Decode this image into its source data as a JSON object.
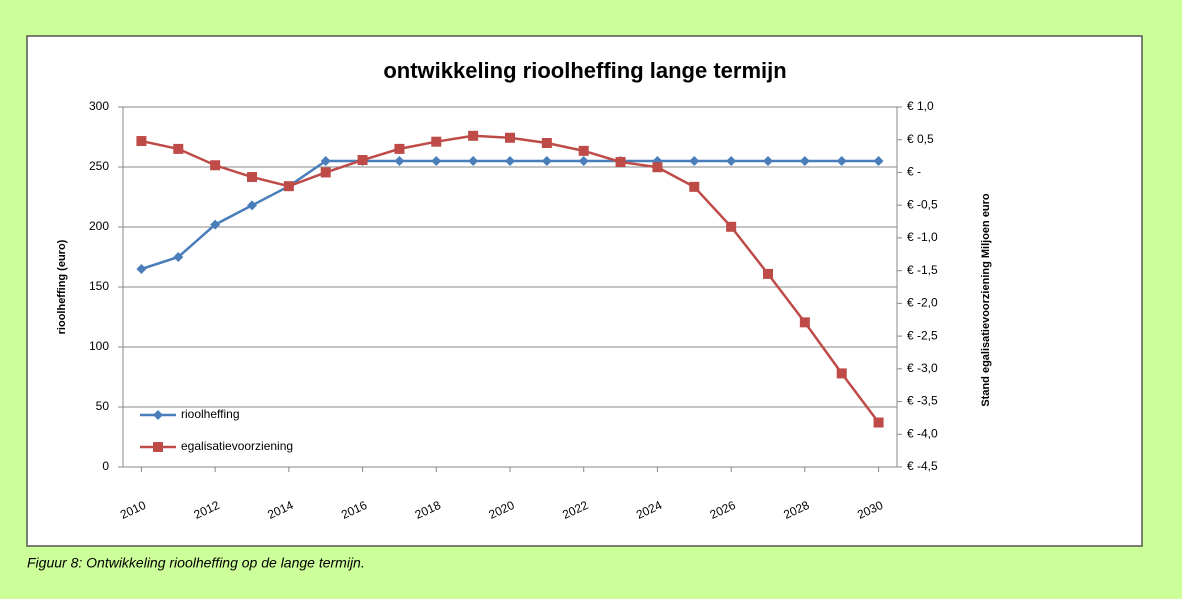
{
  "chart_data": {
    "type": "line",
    "title": "ontwikkeling rioolheffing lange termijn",
    "ylabel": "rioolheffing (euro)",
    "y2label": "Stand egalisatievoorziening Miljoen euro",
    "x": [
      2010,
      2011,
      2012,
      2013,
      2014,
      2015,
      2016,
      2017,
      2018,
      2019,
      2020,
      2021,
      2022,
      2023,
      2024,
      2025,
      2026,
      2027,
      2028,
      2029,
      2030
    ],
    "xlim": [
      2009.5,
      2030.5
    ],
    "xticks": [
      2010,
      2012,
      2014,
      2016,
      2018,
      2020,
      2022,
      2024,
      2026,
      2028,
      2030
    ],
    "ylim": [
      0,
      300
    ],
    "yticks": [
      0,
      50,
      100,
      150,
      200,
      250,
      300
    ],
    "y2lim": [
      -4.5,
      1.0
    ],
    "y2ticks": [
      {
        "value": 1.0,
        "label": "€ 1,0"
      },
      {
        "value": 0.5,
        "label": "€ 0,5"
      },
      {
        "value": 0,
        "label": "€ -"
      },
      {
        "value": -0.5,
        "label": "€ -0,5"
      },
      {
        "value": -1.0,
        "label": "€ -1,0"
      },
      {
        "value": -1.5,
        "label": "€ -1,5"
      },
      {
        "value": -2.0,
        "label": "€ -2,0"
      },
      {
        "value": -2.5,
        "label": "€ -2,5"
      },
      {
        "value": -3.0,
        "label": "€ -3,0"
      },
      {
        "value": -3.5,
        "label": "€ -3,5"
      },
      {
        "value": -4.0,
        "label": "€ -4,0"
      },
      {
        "value": -4.5,
        "label": "€ -4,5"
      }
    ],
    "grid": true,
    "legend": "lower left",
    "series": [
      {
        "name": "rioolheffing",
        "color": "#4a7ebb",
        "marker": "diamond",
        "values": [
          165,
          175,
          202,
          218,
          234,
          255,
          255,
          255,
          255,
          255,
          255,
          255,
          255,
          255,
          255,
          255,
          255,
          255,
          255,
          255,
          255
        ]
      },
      {
        "name": "egalisatievoorziening",
        "color": "#be4b48",
        "marker": "square",
        "axis": "y2",
        "values": [
          0.48,
          0.36,
          0.11,
          -0.07,
          -0.21,
          0.0,
          0.19,
          0.36,
          0.47,
          0.56,
          0.53,
          0.45,
          0.33,
          0.16,
          0.08,
          -0.22,
          -0.83,
          -1.55,
          -2.29,
          -3.07,
          -3.82
        ]
      }
    ]
  },
  "caption": "Figuur 8: Ontwikkeling rioolheffing op de lange termijn."
}
